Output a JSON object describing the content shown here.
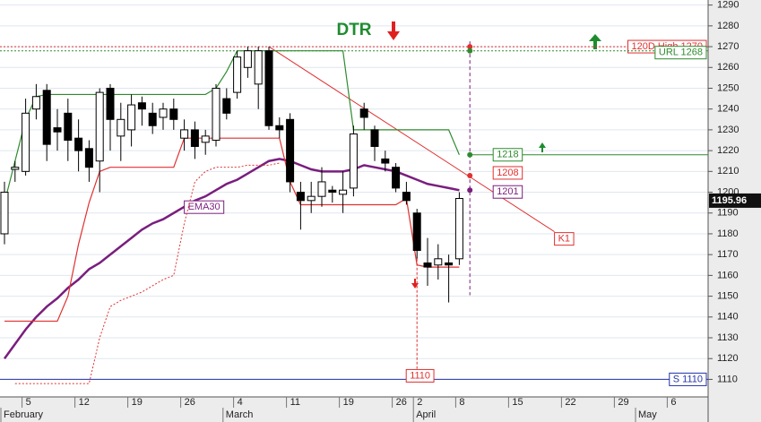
{
  "chart_data": {
    "type": "candlestick",
    "title": "DTR",
    "categories": [
      null,
      null,
      "5",
      null,
      null,
      null,
      null,
      "12",
      null,
      null,
      null,
      null,
      "19",
      null,
      null,
      null,
      null,
      "26",
      null,
      null,
      null,
      null,
      "4",
      null,
      null,
      null,
      null,
      "11",
      null,
      null,
      null,
      null,
      "19",
      null,
      null,
      null,
      null,
      "26",
      null,
      "2",
      null,
      null,
      null,
      "8",
      null,
      null,
      null,
      null,
      "15",
      null,
      null,
      null,
      null,
      "22",
      null,
      null,
      null,
      null,
      "29",
      null,
      null,
      null,
      null,
      "6",
      null,
      null,
      null
    ],
    "months": [
      "February",
      null,
      null,
      null,
      null,
      null,
      null,
      null,
      null,
      null,
      null,
      null,
      null,
      null,
      null,
      null,
      null,
      null,
      null,
      null,
      null,
      "March",
      null,
      null,
      null,
      null,
      null,
      null,
      null,
      null,
      null,
      null,
      null,
      null,
      null,
      null,
      null,
      null,
      null,
      "April",
      null,
      null,
      null,
      null,
      null,
      null,
      null,
      null,
      null,
      null,
      null,
      null,
      null,
      null,
      null,
      null,
      null,
      null,
      null,
      null,
      "May",
      null,
      null,
      null,
      null,
      null,
      null
    ],
    "open": [
      1180,
      1211,
      1210,
      1240,
      1249,
      1231,
      1238,
      1226,
      1221,
      1215,
      1250,
      1227,
      1230,
      1243,
      1238,
      1236,
      1240,
      1226,
      1230,
      1224,
      1225,
      1245,
      1248,
      1260,
      1252,
      1268,
      1232,
      1235,
      1200,
      1196,
      1198,
      1201,
      1199,
      1202,
      1240,
      1230,
      1216,
      1212,
      1200,
      1190,
      1166,
      1165,
      1166,
      1168,
      null,
      null,
      null,
      null,
      null,
      null,
      null,
      null,
      null,
      null,
      null,
      null,
      null,
      null,
      null,
      null,
      null,
      null,
      null,
      null,
      null,
      null,
      null
    ],
    "high": [
      1205,
      1215,
      1245,
      1252,
      1252,
      1240,
      1245,
      1235,
      1225,
      1250,
      1252,
      1243,
      1247,
      1246,
      1243,
      1243,
      1245,
      1235,
      1234,
      1230,
      1252,
      1250,
      1268,
      1270,
      1270,
      1270,
      1236,
      1238,
      1205,
      1205,
      1212,
      1203,
      1210,
      1232,
      1243,
      1232,
      1220,
      1214,
      1205,
      1192,
      1178,
      1175,
      1170,
      1200,
      null,
      null,
      null,
      null,
      null,
      null,
      null,
      null,
      null,
      null,
      null,
      null,
      null,
      null,
      null,
      null,
      null,
      null,
      null,
      null,
      null,
      null,
      null
    ],
    "low": [
      1175,
      1205,
      1208,
      1235,
      1215,
      1220,
      1215,
      1210,
      1205,
      1200,
      1220,
      1215,
      1222,
      1232,
      1228,
      1230,
      1230,
      1220,
      1216,
      1218,
      1222,
      1235,
      1245,
      1255,
      1240,
      1230,
      1226,
      1200,
      1182,
      1190,
      1193,
      1195,
      1190,
      1198,
      1230,
      1215,
      1210,
      1200,
      1194,
      1168,
      1155,
      1158,
      1147,
      1165,
      null,
      null,
      null,
      null,
      null,
      null,
      null,
      null,
      null,
      null,
      null,
      null,
      null,
      null,
      null,
      null,
      null,
      null,
      null,
      null,
      null,
      null,
      null
    ],
    "close": [
      1200,
      1212,
      1238,
      1246,
      1223,
      1229,
      1225,
      1220,
      1212,
      1248,
      1235,
      1235,
      1242,
      1240,
      1232,
      1240,
      1235,
      1230,
      1222,
      1227,
      1250,
      1238,
      1265,
      1268,
      1268,
      1232,
      1230,
      1205,
      1196,
      1198,
      1205,
      1200,
      1201,
      1228,
      1236,
      1222,
      1214,
      1202,
      1196,
      1172,
      1164,
      1168,
      1165,
      1197,
      null,
      null,
      null,
      null,
      null,
      null,
      null,
      null,
      null,
      null,
      null,
      null,
      null,
      null,
      null,
      null,
      null,
      null,
      null,
      null,
      null,
      null,
      null
    ],
    "lines": [
      {
        "name": "EMA30",
        "color": "#7a1e7e",
        "width": 2.5,
        "values": [
          1120,
          1127,
          1134,
          1140,
          1145,
          1149,
          1154,
          1158,
          1163,
          1166,
          1170,
          1174,
          1178,
          1182,
          1185,
          1187,
          1190,
          1193,
          1196,
          1198,
          1201,
          1204,
          1206,
          1209,
          1212,
          1215,
          1216,
          1215,
          1213,
          1211,
          1210,
          1210,
          1210,
          1211,
          1213,
          1212,
          1211,
          1210,
          1208,
          1206,
          1204,
          1203,
          1202,
          1201,
          null,
          null,
          null,
          null,
          null,
          null,
          null,
          null,
          null,
          null,
          null,
          null,
          null,
          null,
          null,
          null,
          null,
          null,
          null,
          null,
          null,
          null,
          null
        ]
      },
      {
        "color": "#2e8b2e",
        "width": 1.2,
        "values": [
          1195,
          1215,
          1235,
          1246,
          1247,
          1247,
          1247,
          1247,
          1247,
          1247,
          1247,
          1247,
          1247,
          1247,
          1247,
          1247,
          1247,
          1247,
          1247,
          1247,
          1250,
          1258,
          1268,
          1268,
          1268,
          1268,
          1268,
          1268,
          1268,
          1268,
          1268,
          1268,
          1268,
          1230,
          1230,
          1230,
          1230,
          1230,
          1230,
          1230,
          1230,
          1230,
          1230,
          1218,
          null,
          null,
          null,
          null,
          null,
          null,
          null,
          null,
          null,
          null,
          null,
          null,
          null,
          null,
          null,
          null,
          null,
          null,
          null,
          null,
          null,
          null,
          null
        ]
      },
      {
        "color": "#e03030",
        "width": 1.2,
        "values": [
          1138,
          1138,
          1138,
          1138,
          1138,
          1138,
          1150,
          1175,
          1195,
          1210,
          1212,
          1212,
          1212,
          1212,
          1212,
          1212,
          1212,
          1226,
          1226,
          1226,
          1226,
          1226,
          1226,
          1226,
          1226,
          1226,
          1226,
          1205,
          1194,
          1194,
          1194,
          1194,
          1194,
          1194,
          1194,
          1194,
          1194,
          1194,
          1197,
          1165,
          1164,
          1164,
          1164,
          1164,
          null,
          null,
          null,
          null,
          null,
          null,
          null,
          null,
          null,
          null,
          null,
          null,
          null,
          null,
          null,
          null,
          null,
          null,
          null,
          null,
          null,
          null,
          null
        ]
      },
      {
        "color": "#e03030",
        "width": 1,
        "dashed": true,
        "values": [
          null,
          1108,
          1108,
          1108,
          1108,
          1108,
          1108,
          1108,
          1108,
          1130,
          1145,
          1148,
          1150,
          1152,
          1155,
          1158,
          1160,
          1185,
          1205,
          1210,
          1212,
          1212,
          1212,
          1213,
          1213,
          1213,
          1214,
          null,
          null,
          null,
          null,
          null,
          null,
          null,
          null,
          null,
          null,
          null,
          null,
          null,
          null,
          null,
          null,
          null,
          null,
          null,
          null,
          null,
          null,
          null,
          null,
          null,
          null,
          null,
          null,
          null,
          null,
          null,
          null,
          null,
          null,
          null,
          null,
          null,
          null,
          null,
          null
        ]
      }
    ],
    "levels": [
      {
        "label": "120D High 1270",
        "value": 1270,
        "color": "#e03030",
        "dashed": true
      },
      {
        "label": "URL 1268",
        "value": 1268,
        "color": "#2e8b2e",
        "dashed": true
      },
      {
        "label": "S 1110",
        "value": 1110,
        "color": "#2233aa",
        "dashed": false
      }
    ],
    "markers": [
      {
        "value": 1218,
        "color": "#2e8b2e",
        "line": true
      },
      {
        "value": 1208,
        "color": "#e03030",
        "line": false
      },
      {
        "value": 1201,
        "color": "#7a1e7e",
        "line": false
      }
    ],
    "stop": {
      "value": 1110,
      "color": "#e03030"
    },
    "trend": {
      "label": "K1",
      "color": "#e03030",
      "from": [
        25,
        1270
      ],
      "to": [
        52,
        1181
      ]
    },
    "last_price": 1195.96,
    "ylim": [
      1102,
      1292
    ],
    "yticks": [
      1110,
      1120,
      1130,
      1140,
      1150,
      1160,
      1170,
      1180,
      1190,
      1200,
      1210,
      1220,
      1230,
      1240,
      1250,
      1260,
      1270,
      1280,
      1290
    ],
    "grid": true
  }
}
